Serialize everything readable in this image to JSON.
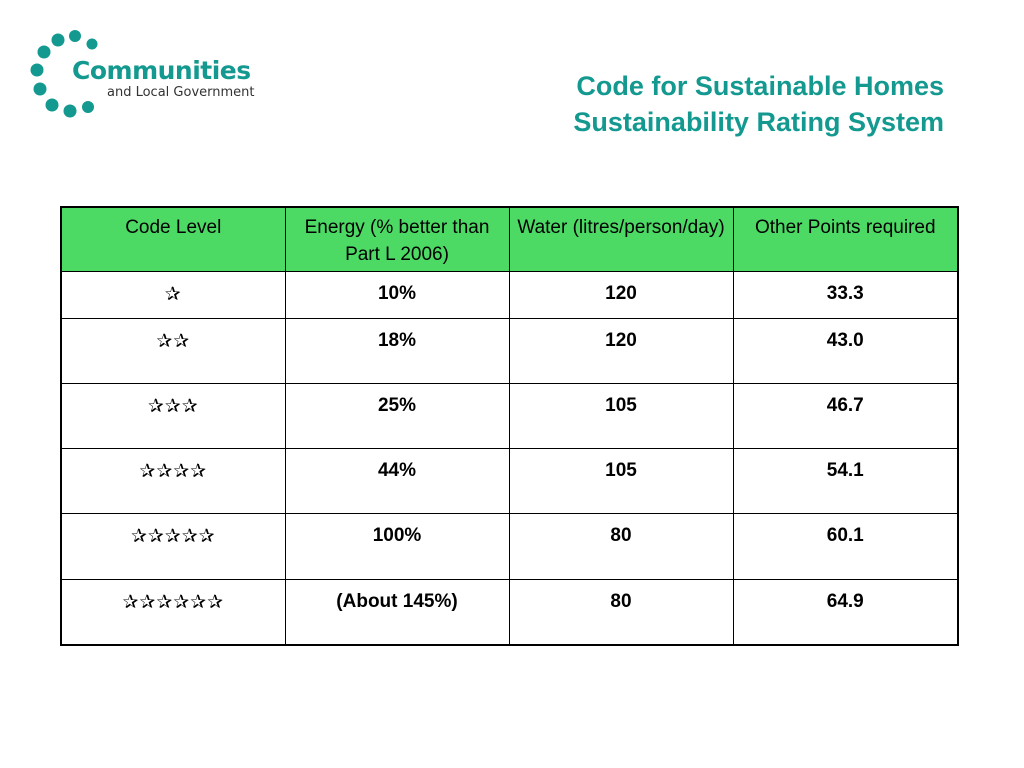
{
  "logo": {
    "name": "Communities",
    "sub": "and Local Government",
    "color": "#13998f"
  },
  "title": {
    "line1": "Code for Sustainable Homes",
    "line2": "Sustainability Rating System"
  },
  "table": {
    "headers": {
      "code_level": "Code Level",
      "energy": "Energy (% better than Part L 2006)",
      "water": "Water (litres/person/day)",
      "other": "Other Points required"
    },
    "header_color": "#4cd964",
    "rows": [
      {
        "code_level": "✰",
        "energy": "10%",
        "water": "120",
        "other": "33.3"
      },
      {
        "code_level": "✰✰",
        "energy": "18%",
        "water": "120",
        "other": "43.0"
      },
      {
        "code_level": "✰✰✰",
        "energy": "25%",
        "water": "105",
        "other": "46.7"
      },
      {
        "code_level": "✰✰✰✰",
        "energy": "44%",
        "water": "105",
        "other": "54.1"
      },
      {
        "code_level": "✰✰✰✰✰",
        "energy": "100%",
        "water": "80",
        "other": "60.1"
      },
      {
        "code_level": "✰✰✰✰✰✰",
        "energy": "(About 145%)",
        "water": "80",
        "other": "64.9"
      }
    ]
  }
}
